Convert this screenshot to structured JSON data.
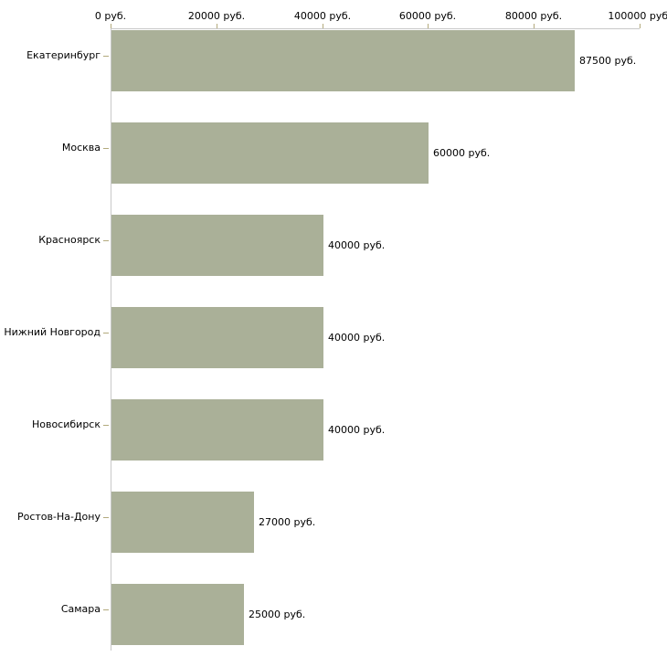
{
  "chart_data": {
    "type": "bar",
    "orientation": "horizontal",
    "title": "",
    "unit": "руб.",
    "categories": [
      "Екатеринбург",
      "Москва",
      "Красноярск",
      "Нижний Новгород",
      "Новосибирск",
      "Ростов-На-Дону",
      "Самара"
    ],
    "values": [
      87500,
      60000,
      40000,
      40000,
      40000,
      27000,
      25000
    ],
    "value_labels": [
      "87500 руб.",
      "60000 руб.",
      "40000 руб.",
      "40000 руб.",
      "40000 руб.",
      "27000 руб.",
      "25000 руб."
    ],
    "x_axis": {
      "position": "top",
      "xlim": [
        0,
        100000
      ],
      "ticks": [
        0,
        20000,
        40000,
        60000,
        80000,
        100000
      ],
      "tick_labels": [
        "0 руб.",
        "20000 руб.",
        "40000 руб.",
        "60000 руб.",
        "80000 руб.",
        "100000 руб."
      ]
    },
    "grid": false,
    "legend": false,
    "colors": {
      "bar": "#aab098",
      "axis_line": "#c8c8c8",
      "tick": "#b3aa7d",
      "text": "#000000",
      "background": "#ffffff"
    }
  }
}
